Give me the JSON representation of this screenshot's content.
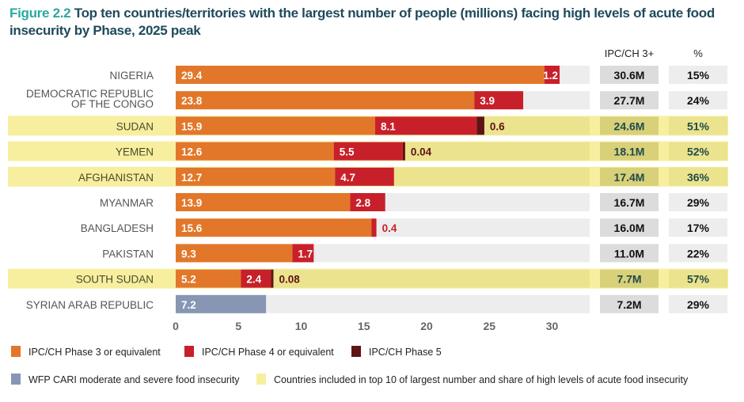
{
  "title": {
    "figure_label": "Figure 2.2",
    "text": "Top ten countries/territories with the largest number of people (millions) facing high levels of acute food insecurity by Phase, 2025 peak"
  },
  "colors": {
    "phase3": "#e2772a",
    "phase4": "#c8202a",
    "phase5": "#5e1414",
    "cari": "#8796b3",
    "highlight": "#f2e89a",
    "track": "#ededed",
    "title_accent": "#2aa8a0",
    "title_main": "#1f4a5c"
  },
  "chart_data": {
    "type": "bar",
    "orientation": "horizontal",
    "stacked": true,
    "title": "Top ten countries/territories with the largest number of people (millions) facing high levels of acute food insecurity by Phase, 2025 peak",
    "xlabel": "",
    "ylabel": "",
    "xlim": [
      0,
      33
    ],
    "xticks": [
      0,
      5,
      10,
      15,
      20,
      25,
      30
    ],
    "categories": [
      "NIGERIA",
      "DEMOCRATIC REPUBLIC OF THE CONGO",
      "SUDAN",
      "YEMEN",
      "AFGHANISTAN",
      "MYANMAR",
      "BANGLADESH",
      "PAKISTAN",
      "SOUTH SUDAN",
      "SYRIAN ARAB REPUBLIC"
    ],
    "category_lines": [
      [
        "NIGERIA"
      ],
      [
        "DEMOCRATIC REPUBLIC",
        "OF THE CONGO"
      ],
      [
        "SUDAN"
      ],
      [
        "YEMEN"
      ],
      [
        "AFGHANISTAN"
      ],
      [
        "MYANMAR"
      ],
      [
        "BANGLADESH"
      ],
      [
        "PAKISTAN"
      ],
      [
        "SOUTH SUDAN"
      ],
      [
        "SYRIAN ARAB REPUBLIC"
      ]
    ],
    "highlighted": [
      false,
      false,
      true,
      true,
      true,
      false,
      false,
      false,
      true,
      false
    ],
    "series": [
      {
        "name": "IPC/CH Phase 3 or equivalent",
        "key": "phase3",
        "values": [
          29.4,
          23.8,
          15.9,
          12.6,
          12.7,
          13.9,
          15.6,
          9.3,
          5.2,
          null
        ],
        "labels": [
          "29.4",
          "23.8",
          "15.9",
          "12.6",
          "12.7",
          "13.9",
          "15.6",
          "9.3",
          "5.2",
          null
        ]
      },
      {
        "name": "IPC/CH Phase 4 or equivalent",
        "key": "phase4",
        "values": [
          1.2,
          3.9,
          8.1,
          5.5,
          4.7,
          2.8,
          0.4,
          1.7,
          2.4,
          null
        ],
        "labels": [
          "1.2",
          "3.9",
          "8.1",
          "5.5",
          "4.7",
          "2.8",
          "0.4",
          "1.7",
          "2.4",
          null
        ]
      },
      {
        "name": "IPC/CH Phase 5",
        "key": "phase5",
        "values": [
          null,
          null,
          0.6,
          0.04,
          null,
          null,
          null,
          null,
          0.08,
          null
        ],
        "labels": [
          null,
          null,
          "0.6",
          "0.04",
          null,
          null,
          null,
          null,
          "0.08",
          null
        ]
      },
      {
        "name": "WFP CARI moderate and severe food insecurity",
        "key": "cari",
        "values": [
          null,
          null,
          null,
          null,
          null,
          null,
          null,
          null,
          null,
          7.2
        ],
        "labels": [
          null,
          null,
          null,
          null,
          null,
          null,
          null,
          null,
          null,
          "7.2"
        ]
      }
    ],
    "table": {
      "headers": [
        "IPC/CH 3+",
        "%"
      ],
      "ipc3plus": [
        "30.6M",
        "27.7M",
        "24.6M",
        "18.1M",
        "17.4M",
        "16.7M",
        "16.0M",
        "11.0M",
        "7.7M",
        "7.2M"
      ],
      "percent": [
        "15%",
        "24%",
        "51%",
        "52%",
        "36%",
        "29%",
        "17%",
        "22%",
        "57%",
        "29%"
      ]
    },
    "legend": {
      "position": "bottom",
      "items": [
        {
          "label": "IPC/CH Phase 3 or equivalent",
          "key": "phase3"
        },
        {
          "label": "IPC/CH Phase 4 or equivalent",
          "key": "phase4"
        },
        {
          "label": "IPC/CH Phase 5",
          "key": "phase5"
        },
        {
          "label": "WFP CARI moderate and severe food insecurity",
          "key": "cari"
        },
        {
          "label": "Countries included in top 10 of largest number and share of high levels of acute food insecurity",
          "key": "highlight"
        }
      ]
    },
    "grid": false
  }
}
